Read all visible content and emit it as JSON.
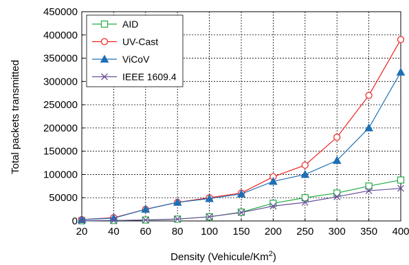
{
  "chart_data": {
    "type": "line",
    "title": "",
    "xlabel": "Density (Vehicule/Km",
    "xlabel_sup": "2",
    "xlabel_close": ")",
    "ylabel": "Total packets transmitted",
    "x_categories": [
      "20",
      "40",
      "60",
      "80",
      "100",
      "150",
      "200",
      "250",
      "300",
      "350",
      "400"
    ],
    "y_ticks": [
      "0",
      "50000",
      "100000",
      "150000",
      "200000",
      "250000",
      "300000",
      "350000",
      "400000",
      "450000"
    ],
    "ylim": [
      0,
      450000
    ],
    "grid": true,
    "legend_position": "top-left",
    "series": [
      {
        "name": "AID",
        "color": "#22aa44",
        "marker": "square-open",
        "values": [
          500,
          1000,
          2000,
          4000,
          9000,
          19000,
          38000,
          50000,
          60000,
          75000,
          88000
        ]
      },
      {
        "name": "UV-Cast",
        "color": "#ee2020",
        "marker": "circle-open",
        "values": [
          3000,
          7000,
          25000,
          40000,
          50000,
          60000,
          95000,
          120000,
          180000,
          270000,
          390000
        ]
      },
      {
        "name": "ViCoV",
        "color": "#1f6fb4",
        "marker": "triangle-filled",
        "values": [
          3000,
          6000,
          25000,
          40000,
          48000,
          58000,
          85000,
          100000,
          130000,
          200000,
          320000
        ]
      },
      {
        "name": "IEEE 1609.4",
        "color": "#6a4f9a",
        "marker": "x",
        "values": [
          500,
          1000,
          2000,
          4000,
          9000,
          18000,
          32000,
          40000,
          52000,
          65000,
          70000
        ]
      }
    ]
  }
}
